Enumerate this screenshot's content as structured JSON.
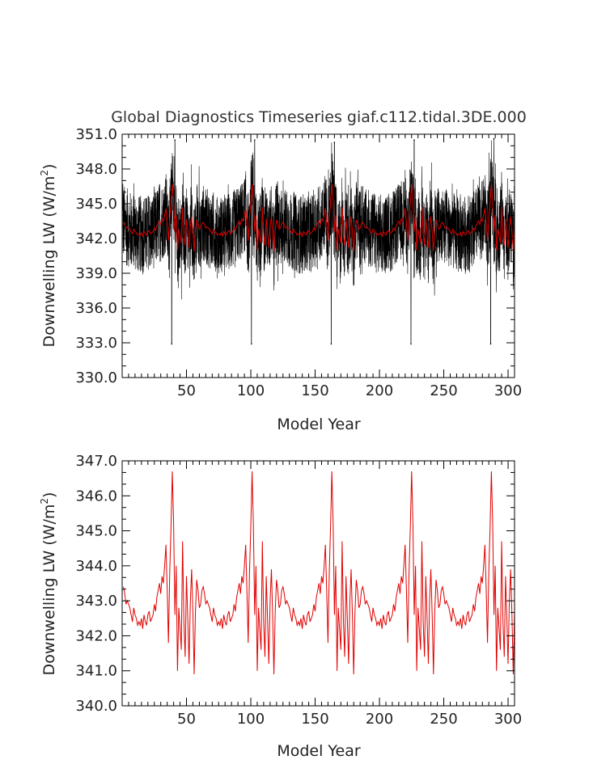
{
  "figure": {
    "title": "Global Diagnostics Timeseries giaf.c112.tidal.3DE.000"
  },
  "colors": {
    "monthly": "#000000",
    "annual": "#e00000",
    "background": "#ffffff"
  },
  "chart_data": [
    {
      "type": "line",
      "title": "Global Diagnostics Timeseries giaf.c112.tidal.3DE.000",
      "xlabel": "Model Year",
      "ylabel_main": "Downwelling LW (W/m",
      "ylabel_sup": "2",
      "ylabel_close": ")",
      "xlim": [
        0,
        305
      ],
      "ylim": [
        330.0,
        351.0
      ],
      "x_ticks": [
        50,
        100,
        150,
        200,
        250,
        300
      ],
      "y_ticks": [
        "330.0",
        "333.0",
        "336.0",
        "339.0",
        "342.0",
        "345.0",
        "348.0",
        "351.0"
      ],
      "y_tick_values": [
        330,
        333,
        336,
        339,
        342,
        345,
        348,
        351
      ],
      "cycle_years": 62,
      "series": [
        {
          "style": "monthly",
          "color": "#000000",
          "points_per_year": 12,
          "typical_range": [
            339.3,
            346.2
          ],
          "spike_minima": [
            {
              "x": 38.5,
              "y": 332.9
            },
            {
              "x": 100.5,
              "y": 332.9
            },
            {
              "x": 162.5,
              "y": 332.9
            },
            {
              "x": 224.5,
              "y": 332.9
            },
            {
              "x": 286.5,
              "y": 332.9
            }
          ],
          "spike_maxima": [
            {
              "x": 41,
              "y": 350.5
            },
            {
              "x": 103,
              "y": 350.5
            },
            {
              "x": 165,
              "y": 350.3
            },
            {
              "x": 227,
              "y": 350.5
            },
            {
              "x": 289,
              "y": 350.6
            }
          ]
        },
        {
          "style": "annual",
          "color": "#e00000"
        }
      ],
      "grid": false
    },
    {
      "type": "line",
      "xlabel": "Model Year",
      "ylabel_main": "Downwelling LW (W/m",
      "ylabel_sup": "2",
      "ylabel_close": ")",
      "xlim": [
        0,
        305
      ],
      "ylim": [
        340.0,
        347.0
      ],
      "x_ticks": [
        50,
        100,
        150,
        200,
        250,
        300
      ],
      "y_ticks": [
        "340.0",
        "341.0",
        "342.0",
        "343.0",
        "344.0",
        "345.0",
        "346.0",
        "347.0"
      ],
      "y_tick_values": [
        340,
        341,
        342,
        343,
        344,
        345,
        346,
        347
      ],
      "cycle_years": 62,
      "series": [
        {
          "style": "annual",
          "color": "#e00000",
          "x": [
            1,
            2,
            3,
            4,
            5,
            6,
            7,
            8,
            9,
            10,
            11,
            12,
            13,
            14,
            15,
            16,
            17,
            18,
            19,
            20,
            21,
            22,
            23,
            24,
            25,
            26,
            27,
            28,
            29,
            30,
            31,
            32,
            33,
            34,
            35,
            36,
            37,
            38,
            39,
            40,
            41,
            42,
            43,
            44,
            45,
            46,
            47,
            48,
            49,
            50,
            51,
            52,
            53,
            54,
            55,
            56,
            57,
            58,
            59,
            60,
            61,
            62
          ],
          "y": [
            343.4,
            343.2,
            342.9,
            343.0,
            342.9,
            342.8,
            342.6,
            342.4,
            342.8,
            342.6,
            342.5,
            342.3,
            342.4,
            342.3,
            342.5,
            342.2,
            342.6,
            342.4,
            342.3,
            342.6,
            342.7,
            342.4,
            342.5,
            342.6,
            342.9,
            342.7,
            343.1,
            343.3,
            343.5,
            343.2,
            343.7,
            343.5,
            344.0,
            344.6,
            343.3,
            341.8,
            343.8,
            345.1,
            346.7,
            345.2,
            342.6,
            344.0,
            341.0,
            342.8,
            342.2,
            341.6,
            344.7,
            342.4,
            341.4,
            343.7,
            342.5,
            341.2,
            343.0,
            343.9,
            342.6,
            340.9,
            342.7,
            343.6,
            343.3,
            342.8,
            342.9,
            343.3
          ]
        }
      ],
      "grid": false
    }
  ]
}
